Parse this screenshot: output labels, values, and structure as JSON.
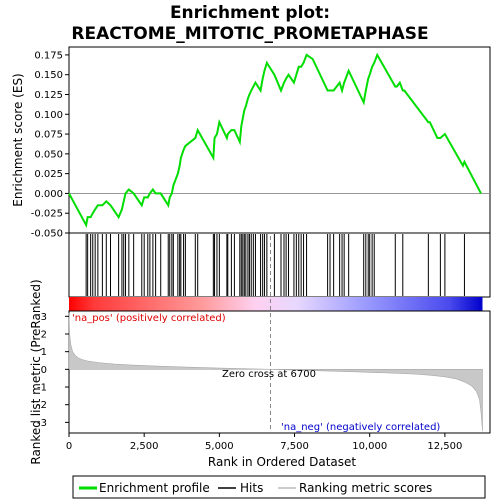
{
  "chart_data": {
    "type": "line",
    "title_line1": "Enrichment plot:",
    "title_line2": "REACTOME_MITOTIC_PROMETAPHASE",
    "top_panel": {
      "ylabel": "Enrichment score (ES)",
      "ylim": [
        -0.05,
        0.185
      ],
      "yticks": [
        -0.05,
        -0.025,
        0.0,
        0.025,
        0.05,
        0.075,
        0.1,
        0.125,
        0.15,
        0.175
      ],
      "ytick_labels": [
        "-0.050",
        "-0.025",
        "0.000",
        "0.025",
        "0.050",
        "0.075",
        "0.100",
        "0.125",
        "0.150",
        "0.175"
      ],
      "series_color": "#00dd00",
      "es_x": [
        0,
        570,
        620,
        720,
        790,
        870,
        960,
        1110,
        1240,
        1380,
        1650,
        1760,
        1820,
        1880,
        1990,
        2150,
        2420,
        2500,
        2620,
        2690,
        2790,
        2880,
        3050,
        3300,
        3350,
        3420,
        3470,
        3620,
        3680,
        3720,
        3810,
        3870,
        4200,
        4280,
        4800,
        4840,
        4920,
        5000,
        5250,
        5280,
        5400,
        5500,
        5680,
        5730,
        5780,
        5830,
        5880,
        5950,
        6000,
        6060,
        6130,
        6200,
        6370,
        6440,
        6500,
        6580,
        6830,
        7050,
        7150,
        7220,
        7300,
        7480,
        7560,
        7640,
        7720,
        7800,
        7900,
        8100,
        8600,
        8680,
        8800,
        9000,
        9080,
        9150,
        9300,
        9800,
        9870,
        9950,
        10000,
        10080,
        10150,
        10250,
        10850,
        10900,
        11000,
        11100,
        11150,
        11950,
        12000,
        12250,
        12350,
        12500,
        13100,
        13150,
        13700
      ],
      "es_y": [
        0.0,
        -0.04,
        -0.03,
        -0.03,
        -0.025,
        -0.02,
        -0.015,
        -0.015,
        -0.01,
        -0.015,
        -0.03,
        -0.02,
        -0.01,
        0.0,
        0.005,
        0.0,
        -0.015,
        -0.005,
        -0.005,
        0.0,
        0.005,
        0.0,
        0.0,
        -0.015,
        -0.005,
        0.0,
        0.01,
        0.025,
        0.035,
        0.045,
        0.055,
        0.06,
        0.07,
        0.08,
        0.045,
        0.07,
        0.075,
        0.09,
        0.07,
        0.075,
        0.08,
        0.08,
        0.065,
        0.085,
        0.095,
        0.105,
        0.11,
        0.12,
        0.125,
        0.13,
        0.135,
        0.14,
        0.13,
        0.145,
        0.155,
        0.165,
        0.15,
        0.13,
        0.14,
        0.145,
        0.15,
        0.14,
        0.15,
        0.16,
        0.16,
        0.165,
        0.175,
        0.17,
        0.13,
        0.13,
        0.13,
        0.14,
        0.13,
        0.14,
        0.155,
        0.115,
        0.13,
        0.145,
        0.15,
        0.16,
        0.165,
        0.175,
        0.135,
        0.135,
        0.14,
        0.13,
        0.13,
        0.09,
        0.09,
        0.07,
        0.07,
        0.075,
        0.035,
        0.04,
        0.0
      ]
    },
    "hits_x": [
      570,
      620,
      720,
      790,
      870,
      960,
      1110,
      1240,
      1380,
      1650,
      1760,
      1820,
      1880,
      1990,
      2150,
      2420,
      2500,
      2620,
      2690,
      2790,
      2880,
      3050,
      3300,
      3350,
      3420,
      3470,
      3620,
      3680,
      3720,
      3810,
      3870,
      4200,
      4280,
      4800,
      4840,
      4920,
      5000,
      5250,
      5280,
      5400,
      5500,
      5680,
      5730,
      5780,
      5830,
      5880,
      5950,
      6000,
      6060,
      6130,
      6200,
      6370,
      6440,
      6500,
      6580,
      6830,
      7050,
      7150,
      7220,
      7300,
      7480,
      7560,
      7640,
      7720,
      7800,
      7900,
      8600,
      8680,
      8800,
      9000,
      9080,
      9150,
      9300,
      9800,
      9870,
      9950,
      10000,
      10080,
      10150,
      10850,
      11100,
      11950,
      12350,
      12500,
      13150
    ],
    "bottom_panel": {
      "ylabel": "Ranked list metric (PreRanked)",
      "xlabel": "Rank in Ordered Dataset",
      "ylim": [
        -3.6,
        3.3
      ],
      "yticks": [
        -3,
        -2,
        -1,
        0,
        1,
        2,
        3
      ],
      "ytick_labels": [
        "-3",
        "-2",
        "-1",
        "0",
        "1",
        "2",
        "3"
      ],
      "xlim": [
        0,
        14000
      ],
      "xticks": [
        0,
        2500,
        5000,
        7500,
        10000,
        12500
      ],
      "xtick_labels": [
        "0",
        "2,500",
        "5,000",
        "7,500",
        "10,000",
        "12,500"
      ],
      "n_genes": 13750,
      "zero_cross": 6700,
      "zero_cross_label": "Zero cross at 6700",
      "pos_label": "'na_pos' (positively correlated)",
      "neg_label": "'na_neg' (negatively correlated)",
      "pos_color": "#dd0000",
      "neg_color": "#0000cc",
      "metric_x": [
        0,
        20,
        60,
        120,
        200,
        300,
        450,
        600,
        800,
        1000,
        1500,
        2000,
        3000,
        4000,
        5000,
        6000,
        6700,
        7500,
        8500,
        9500,
        10500,
        11500,
        12000,
        12500,
        12900,
        13200,
        13400,
        13550,
        13650,
        13700,
        13750
      ],
      "metric_y": [
        3.2,
        2.0,
        1.4,
        1.0,
        0.8,
        0.65,
        0.55,
        0.48,
        0.43,
        0.38,
        0.3,
        0.25,
        0.18,
        0.12,
        0.07,
        0.03,
        0.0,
        -0.04,
        -0.09,
        -0.14,
        -0.2,
        -0.27,
        -0.33,
        -0.42,
        -0.55,
        -0.75,
        -0.95,
        -1.25,
        -1.7,
        -2.4,
        -3.5
      ]
    },
    "legend": {
      "items": [
        {
          "label": "Enrichment profile",
          "color": "#00dd00"
        },
        {
          "label": "Hits",
          "color": "#000000"
        },
        {
          "label": "Ranking metric scores",
          "color": "#bbbbbb"
        }
      ]
    }
  }
}
